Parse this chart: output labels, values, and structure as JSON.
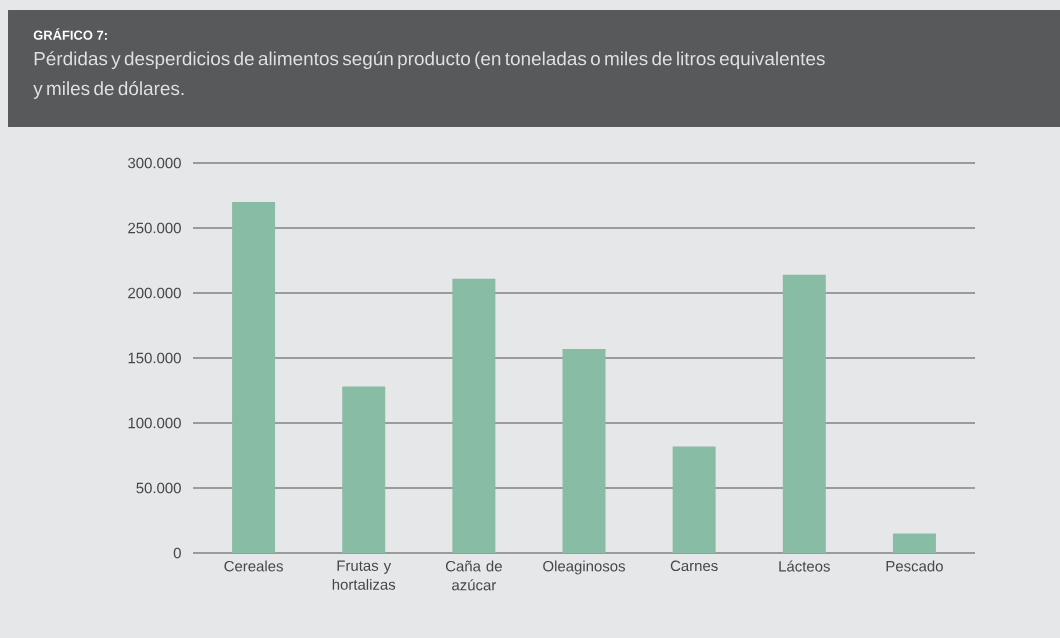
{
  "chart_data": {
    "type": "bar",
    "title": "GRÁFICO 7:",
    "subtitle": "Pérdidas y desperdicios de alimentos según producto (en toneladas o miles de litros equivalentes y miles de dólares.",
    "categories": [
      "Cereales",
      "Frutas y hortalizas",
      "Caña de azúcar",
      "Oleaginosos",
      "Carnes",
      "Lácteos",
      "Pescado"
    ],
    "values": [
      270000,
      128000,
      211000,
      157000,
      82000,
      214000,
      15000
    ],
    "color": "#89bca5",
    "ylim": [
      0,
      300000
    ],
    "yticks": [
      {
        "value": 0,
        "label": "0"
      },
      {
        "value": 50000,
        "label": "50.000"
      },
      {
        "value": 100000,
        "label": "100.000"
      },
      {
        "value": 150000,
        "label": "150.000"
      },
      {
        "value": 200000,
        "label": "200.000"
      },
      {
        "value": 250000,
        "label": "250.000"
      },
      {
        "value": 300000,
        "label": "300.000"
      }
    ],
    "grid": "y"
  }
}
